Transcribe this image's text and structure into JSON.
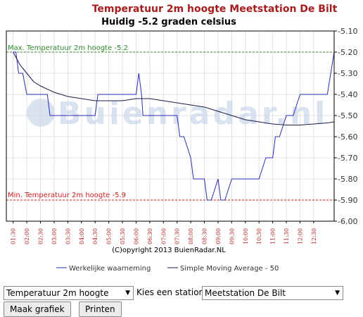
{
  "chart_data": {
    "type": "line",
    "title": "Temperatuur 2m hoogte Meetstation De Bilt",
    "subtitle": "Huidig -5.2 graden celsius",
    "ylim": [
      -6.0,
      -5.1
    ],
    "yticks": [
      -5.1,
      -5.2,
      -5.3,
      -5.4,
      -5.5,
      -5.6,
      -5.7,
      -5.8,
      -5.9,
      -6.0
    ],
    "ytick_labels": [
      "-5.10",
      "-5.20",
      "-5.30",
      "-5.40",
      "-5.50",
      "-5.60",
      "-5.70",
      "-5.80",
      "-5.90",
      "-6.00"
    ],
    "x_labels": [
      "01:30",
      "02:00",
      "02:30",
      "03:00",
      "03:30",
      "04:00",
      "04:30",
      "05:00",
      "05:30",
      "06:00",
      "06:30",
      "07:00",
      "07:30",
      "08:00",
      "08:30",
      "09:00",
      "09:30",
      "10:00",
      "10:30",
      "11:00",
      "11:30",
      "12:00",
      "12:30"
    ],
    "grid": true,
    "legend_placement": "bottom",
    "reference_lines": [
      {
        "label": "Max. Temperatuur 2m hoogte -5.2",
        "value": -5.2,
        "color": "#2e8b2e"
      },
      {
        "label": "Min. Temperatuur 2m hoogte -5.9",
        "value": -5.9,
        "color": "#cc1f1f"
      }
    ],
    "series": [
      {
        "name": "Werkelijke waarneming",
        "color": "#2b2bb5",
        "x": [
          1.0,
          1.1,
          1.2,
          1.35,
          1.5,
          1.75,
          2.0,
          2.25,
          2.35,
          2.5,
          2.75,
          3.0,
          3.25,
          3.5,
          3.75,
          4.0,
          4.1,
          4.25,
          4.5,
          4.75,
          5.0,
          5.25,
          5.5,
          5.6,
          5.7,
          5.75,
          6.0,
          6.25,
          6.5,
          6.75,
          7.0,
          7.1,
          7.25,
          7.5,
          7.6,
          7.75,
          8.0,
          8.1,
          8.25,
          8.5,
          8.6,
          8.75,
          9.0,
          9.25,
          9.5,
          9.6,
          9.75,
          10.0,
          10.25,
          10.5,
          10.6,
          10.75,
          11.0,
          11.25,
          11.5,
          11.75,
          12.0,
          12.25,
          12.5,
          12.75
        ],
        "values": [
          -5.2,
          -5.2,
          -5.3,
          -5.3,
          -5.4,
          -5.4,
          -5.4,
          -5.4,
          -5.5,
          -5.5,
          -5.5,
          -5.5,
          -5.5,
          -5.5,
          -5.5,
          -5.5,
          -5.4,
          -5.4,
          -5.4,
          -5.4,
          -5.4,
          -5.4,
          -5.4,
          -5.3,
          -5.4,
          -5.5,
          -5.5,
          -5.5,
          -5.5,
          -5.5,
          -5.5,
          -5.6,
          -5.6,
          -5.7,
          -5.8,
          -5.8,
          -5.8,
          -5.9,
          -5.9,
          -5.8,
          -5.9,
          -5.9,
          -5.8,
          -5.8,
          -5.8,
          -5.8,
          -5.8,
          -5.8,
          -5.7,
          -5.7,
          -5.6,
          -5.6,
          -5.5,
          -5.5,
          -5.4,
          -5.4,
          -5.4,
          -5.4,
          -5.4,
          -5.2
        ]
      },
      {
        "name": "Simple Moving Average - 50",
        "color": "#1a1a4a",
        "x": [
          1.0,
          1.25,
          1.5,
          1.75,
          2.0,
          2.5,
          3.0,
          3.5,
          4.0,
          4.5,
          5.0,
          5.5,
          6.0,
          6.5,
          7.0,
          7.5,
          8.0,
          8.5,
          9.0,
          9.5,
          10.0,
          10.5,
          11.0,
          11.5,
          12.0,
          12.5,
          12.75
        ],
        "values": [
          -5.2,
          -5.26,
          -5.3,
          -5.34,
          -5.36,
          -5.39,
          -5.41,
          -5.42,
          -5.43,
          -5.43,
          -5.43,
          -5.42,
          -5.42,
          -5.43,
          -5.44,
          -5.45,
          -5.46,
          -5.48,
          -5.5,
          -5.52,
          -5.53,
          -5.54,
          -5.545,
          -5.545,
          -5.54,
          -5.535,
          -5.53
        ]
      }
    ],
    "watermark": "Buienradar.nl",
    "copyright": "(C)opyright 2013 BuienRadar.NL"
  },
  "controls": {
    "parameter_select": "Temperatuur 2m hoogte",
    "station_label": "Kies een station:",
    "station_select": "Meetstation De Bilt",
    "make_chart_button": "Maak grafiek",
    "print_button": "Printen"
  }
}
